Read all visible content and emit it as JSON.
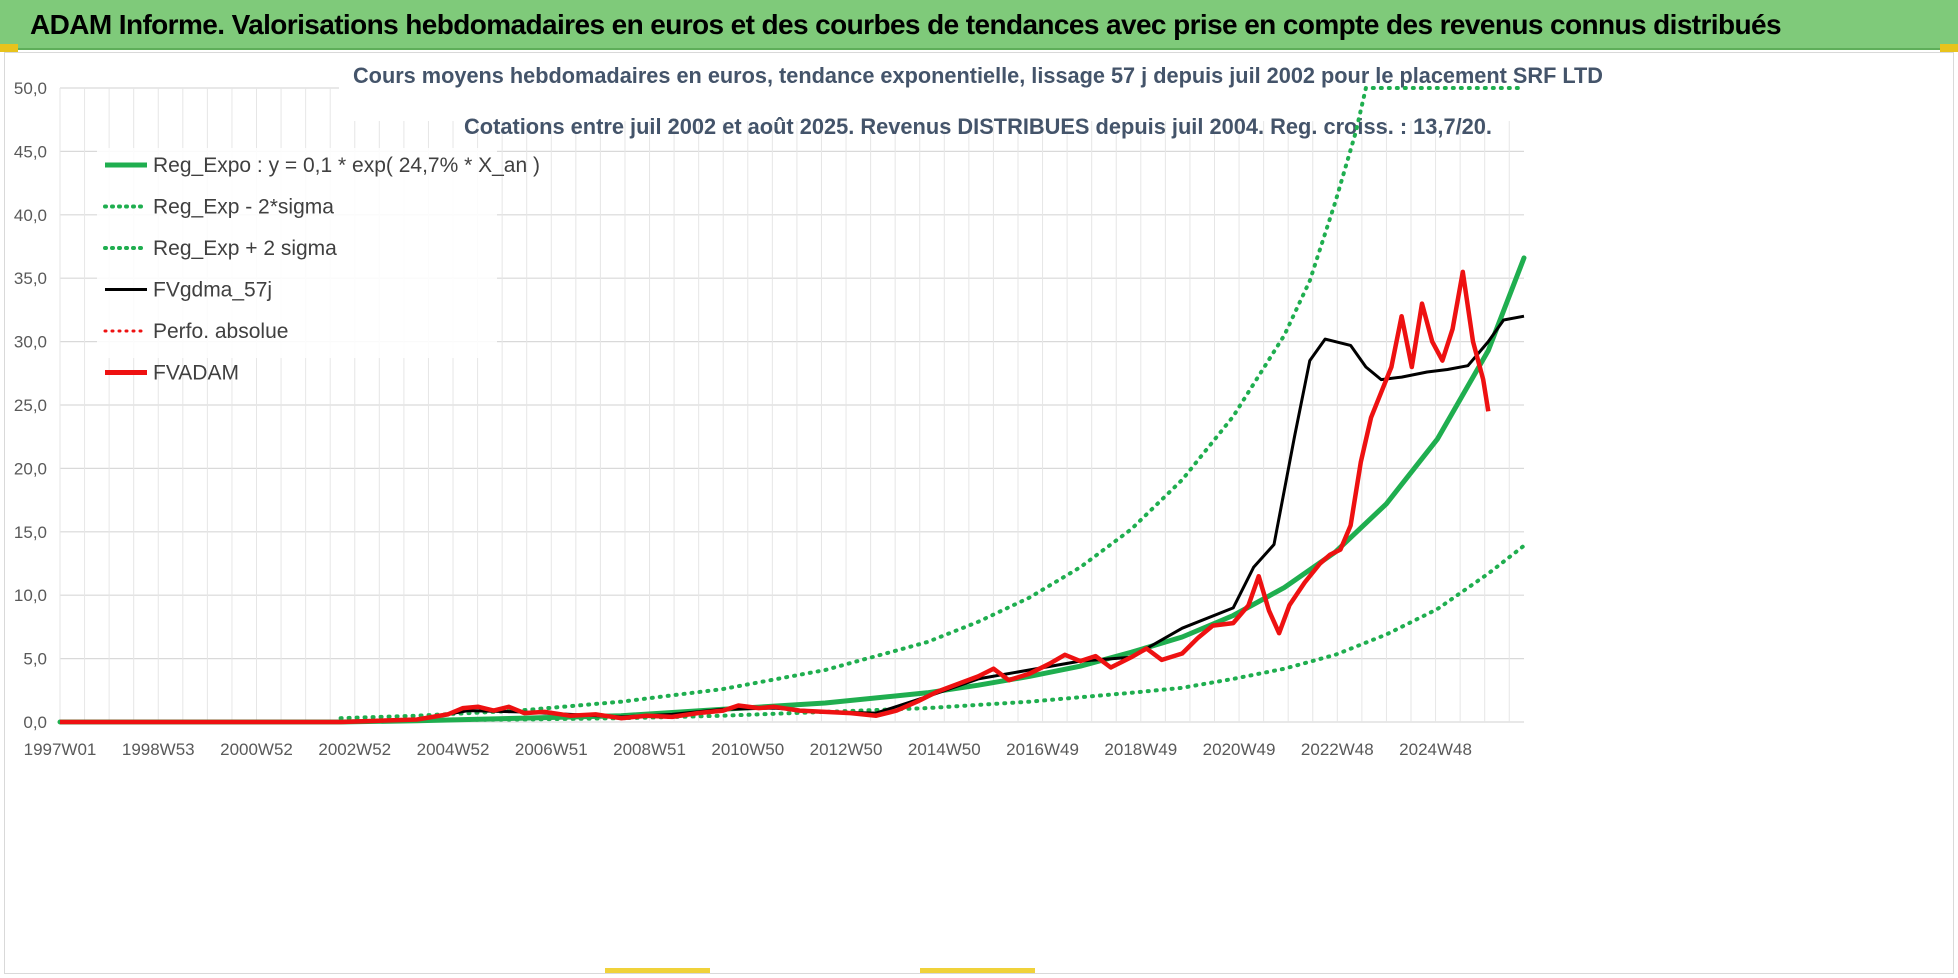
{
  "header": {
    "title": "ADAM Informe. Valorisations hebdomadaires en euros et des courbes de tendances avec prise en compte des revenus connus distribués"
  },
  "colors": {
    "header_bg": "#7fca7a",
    "trend": "#1fae4f",
    "fvadam": "#ee1111",
    "gdma": "#000000",
    "grid": "#d9d9d9"
  },
  "chart_data": {
    "type": "line",
    "title_line1": "Cours moyens hebdomadaires en euros, tendance exponentielle, lissage 57 j depuis juil 2002 pour le placement SRF LTD",
    "title_line2": "Cotations entre juil 2002 et août 2025. Revenus DISTRIBUES depuis juil 2004. Reg. croiss. : 13,7/20.",
    "x_tick_labels": [
      "1997W01",
      "1998W53",
      "2000W52",
      "2002W52",
      "2004W52",
      "2006W51",
      "2008W51",
      "2010W50",
      "2012W50",
      "2014W50",
      "2016W49",
      "2018W49",
      "2020W49",
      "2022W48",
      "2024W48"
    ],
    "y_tick_labels": [
      "0,0",
      "5,0",
      "10,0",
      "15,0",
      "20,0",
      "25,0",
      "30,0",
      "35,0",
      "40,0",
      "45,0",
      "50,0"
    ],
    "xlim": [
      1997.0,
      2025.7
    ],
    "ylim": [
      0,
      50
    ],
    "legend": [
      {
        "label": "Reg_Expo : y = 0,1 * exp( 24,7% *  X_an )",
        "color": "#1fae4f",
        "style": "solid",
        "width": 5
      },
      {
        "label": "Reg_Exp - 2*sigma",
        "color": "#1fae4f",
        "style": "dotted",
        "width": 4
      },
      {
        "label": "Reg_Exp + 2 sigma",
        "color": "#1fae4f",
        "style": "dotted",
        "width": 4
      },
      {
        "label": "FVgdma_57j",
        "color": "#000000",
        "style": "solid",
        "width": 3
      },
      {
        "label": "Perfo. absolue",
        "color": "#ee1111",
        "style": "dotted",
        "width": 3
      },
      {
        "label": "FVADAM",
        "color": "#ee1111",
        "style": "solid",
        "width": 5
      }
    ],
    "series": [
      {
        "name": "Reg_Expo : y = 0,1 * exp( 24,7% *  X_an )",
        "color": "#1fae4f",
        "dash": "solid",
        "points": [
          [
            1997.0,
            0
          ],
          [
            2002.5,
            0
          ],
          [
            2004.0,
            0.1
          ],
          [
            2006.0,
            0.3
          ],
          [
            2008.0,
            0.5
          ],
          [
            2010.0,
            1.0
          ],
          [
            2012.0,
            1.5
          ],
          [
            2014.0,
            2.3
          ],
          [
            2015.0,
            2.9
          ],
          [
            2016.0,
            3.6
          ],
          [
            2017.0,
            4.4
          ],
          [
            2018.0,
            5.5
          ],
          [
            2019.0,
            6.7
          ],
          [
            2020.0,
            8.4
          ],
          [
            2021.0,
            10.6
          ],
          [
            2022.0,
            13.4
          ],
          [
            2023.0,
            17.2
          ],
          [
            2024.0,
            22.3
          ],
          [
            2025.0,
            29.3
          ],
          [
            2025.7,
            36.6
          ]
        ]
      },
      {
        "name": "Reg_Exp - 2*sigma",
        "color": "#1fae4f",
        "dash": "dotted",
        "points": [
          [
            2002.5,
            0.1
          ],
          [
            2006.0,
            0.2
          ],
          [
            2008.0,
            0.3
          ],
          [
            2010.0,
            0.5
          ],
          [
            2012.0,
            0.8
          ],
          [
            2014.0,
            1.1
          ],
          [
            2016.0,
            1.6
          ],
          [
            2018.0,
            2.3
          ],
          [
            2019.0,
            2.7
          ],
          [
            2020.0,
            3.4
          ],
          [
            2021.0,
            4.2
          ],
          [
            2022.0,
            5.3
          ],
          [
            2023.0,
            6.9
          ],
          [
            2024.0,
            8.9
          ],
          [
            2025.0,
            11.7
          ],
          [
            2025.7,
            13.9
          ]
        ]
      },
      {
        "name": "Reg_Exp + 2 sigma",
        "color": "#1fae4f",
        "dash": "dotted",
        "points": [
          [
            2002.5,
            0.3
          ],
          [
            2004.0,
            0.5
          ],
          [
            2006.0,
            0.9
          ],
          [
            2008.0,
            1.6
          ],
          [
            2010.0,
            2.6
          ],
          [
            2012.0,
            4.1
          ],
          [
            2014.0,
            6.3
          ],
          [
            2015.0,
            7.9
          ],
          [
            2016.0,
            9.8
          ],
          [
            2017.0,
            12.2
          ],
          [
            2018.0,
            15.2
          ],
          [
            2019.0,
            19.1
          ],
          [
            2020.0,
            24.1
          ],
          [
            2021.0,
            30.5
          ],
          [
            2021.5,
            34.8
          ],
          [
            2022.0,
            41.0
          ],
          [
            2022.4,
            46.5
          ],
          [
            2022.6,
            50.0
          ],
          [
            2025.7,
            50.0
          ]
        ]
      },
      {
        "name": "FVgdma_57j",
        "color": "#000000",
        "dash": "solid",
        "points": [
          [
            1997.0,
            0
          ],
          [
            2002.5,
            0
          ],
          [
            2004.0,
            0.2
          ],
          [
            2005.0,
            0.9
          ],
          [
            2006.0,
            0.8
          ],
          [
            2007.0,
            0.6
          ],
          [
            2008.0,
            0.4
          ],
          [
            2009.0,
            0.6
          ],
          [
            2010.0,
            1.0
          ],
          [
            2011.0,
            1.1
          ],
          [
            2012.0,
            0.8
          ],
          [
            2013.0,
            0.7
          ],
          [
            2014.0,
            2.0
          ],
          [
            2015.0,
            3.4
          ],
          [
            2016.0,
            4.1
          ],
          [
            2017.0,
            4.8
          ],
          [
            2018.0,
            5.1
          ],
          [
            2019.0,
            7.4
          ],
          [
            2020.0,
            9.0
          ],
          [
            2020.4,
            12.2
          ],
          [
            2020.8,
            14.0
          ],
          [
            2021.2,
            22.5
          ],
          [
            2021.5,
            28.5
          ],
          [
            2021.8,
            30.2
          ],
          [
            2022.3,
            29.7
          ],
          [
            2022.6,
            28.0
          ],
          [
            2022.9,
            27.0
          ],
          [
            2023.3,
            27.2
          ],
          [
            2023.8,
            27.6
          ],
          [
            2024.2,
            27.8
          ],
          [
            2024.6,
            28.1
          ],
          [
            2025.0,
            30.0
          ],
          [
            2025.3,
            31.7
          ],
          [
            2025.7,
            32.0
          ]
        ]
      },
      {
        "name": "FVADAM",
        "color": "#ee1111",
        "dash": "solid",
        "points": [
          [
            1997.0,
            0
          ],
          [
            2002.5,
            0
          ],
          [
            2004.0,
            0.2
          ],
          [
            2004.6,
            0.6
          ],
          [
            2004.9,
            1.1
          ],
          [
            2005.2,
            1.2
          ],
          [
            2005.5,
            0.9
          ],
          [
            2005.8,
            1.2
          ],
          [
            2006.1,
            0.7
          ],
          [
            2006.5,
            0.8
          ],
          [
            2007.0,
            0.5
          ],
          [
            2007.5,
            0.6
          ],
          [
            2008.0,
            0.3
          ],
          [
            2008.5,
            0.5
          ],
          [
            2009.0,
            0.4
          ],
          [
            2009.5,
            0.7
          ],
          [
            2010.0,
            0.9
          ],
          [
            2010.3,
            1.3
          ],
          [
            2010.7,
            1.1
          ],
          [
            2011.0,
            1.2
          ],
          [
            2011.5,
            0.9
          ],
          [
            2012.0,
            0.8
          ],
          [
            2012.5,
            0.7
          ],
          [
            2013.0,
            0.5
          ],
          [
            2013.4,
            0.9
          ],
          [
            2013.8,
            1.6
          ],
          [
            2014.2,
            2.4
          ],
          [
            2014.6,
            3.0
          ],
          [
            2015.0,
            3.6
          ],
          [
            2015.3,
            4.2
          ],
          [
            2015.6,
            3.3
          ],
          [
            2016.0,
            3.8
          ],
          [
            2016.4,
            4.6
          ],
          [
            2016.7,
            5.3
          ],
          [
            2017.0,
            4.8
          ],
          [
            2017.3,
            5.2
          ],
          [
            2017.6,
            4.3
          ],
          [
            2018.0,
            5.1
          ],
          [
            2018.3,
            5.8
          ],
          [
            2018.6,
            4.9
          ],
          [
            2019.0,
            5.4
          ],
          [
            2019.3,
            6.6
          ],
          [
            2019.6,
            7.6
          ],
          [
            2020.0,
            7.8
          ],
          [
            2020.3,
            9.2
          ],
          [
            2020.5,
            11.5
          ],
          [
            2020.7,
            8.8
          ],
          [
            2020.9,
            7.0
          ],
          [
            2021.1,
            9.2
          ],
          [
            2021.4,
            11.0
          ],
          [
            2021.7,
            12.5
          ],
          [
            2021.9,
            13.2
          ],
          [
            2022.1,
            13.6
          ],
          [
            2022.3,
            15.5
          ],
          [
            2022.5,
            20.5
          ],
          [
            2022.7,
            24.0
          ],
          [
            2022.9,
            26.0
          ],
          [
            2023.1,
            28.0
          ],
          [
            2023.3,
            32.0
          ],
          [
            2023.5,
            28.0
          ],
          [
            2023.7,
            33.0
          ],
          [
            2023.9,
            30.0
          ],
          [
            2024.1,
            28.5
          ],
          [
            2024.3,
            31.0
          ],
          [
            2024.5,
            35.5
          ],
          [
            2024.7,
            30.0
          ],
          [
            2024.9,
            27.0
          ],
          [
            2025.0,
            24.5
          ]
        ]
      }
    ],
    "grid": true,
    "legend_position": "top-left"
  }
}
